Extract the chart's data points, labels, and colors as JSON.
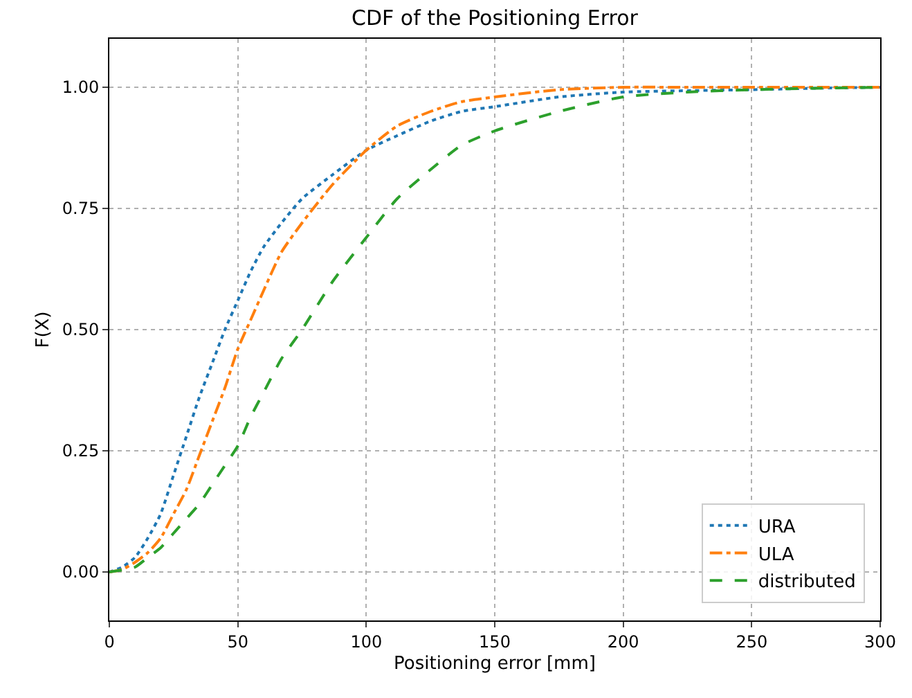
{
  "chart_data": {
    "type": "line",
    "title": "CDF of the Positioning Error",
    "xlabel": "Positioning error [mm]",
    "ylabel": "F(X)",
    "x": [
      0,
      5,
      10,
      15,
      20,
      25,
      30,
      35,
      40,
      45,
      50,
      55,
      60,
      67,
      75,
      87,
      100,
      112,
      125,
      137,
      150,
      175,
      200,
      225,
      250,
      275,
      300
    ],
    "series": [
      {
        "name": "URA",
        "color": "#1f77b4",
        "line_style": "dotted",
        "values": [
          0,
          0.01,
          0.03,
          0.07,
          0.12,
          0.2,
          0.28,
          0.36,
          0.43,
          0.5,
          0.56,
          0.62,
          0.67,
          0.72,
          0.77,
          0.82,
          0.87,
          0.9,
          0.93,
          0.95,
          0.96,
          0.98,
          0.99,
          0.993,
          0.995,
          0.998,
          1.0
        ]
      },
      {
        "name": "ULA",
        "color": "#ff7f0e",
        "line_style": "dashdot",
        "values": [
          0,
          0.005,
          0.02,
          0.04,
          0.07,
          0.12,
          0.17,
          0.24,
          0.31,
          0.38,
          0.46,
          0.52,
          0.58,
          0.66,
          0.72,
          0.8,
          0.87,
          0.92,
          0.95,
          0.97,
          0.98,
          0.995,
          1.0,
          1.0,
          1.0,
          1.0,
          1.0
        ]
      },
      {
        "name": "distributed",
        "color": "#2ca02c",
        "line_style": "dashed",
        "values": [
          0,
          0.004,
          0.01,
          0.03,
          0.05,
          0.08,
          0.11,
          0.14,
          0.18,
          0.22,
          0.26,
          0.32,
          0.37,
          0.44,
          0.5,
          0.6,
          0.69,
          0.77,
          0.83,
          0.88,
          0.91,
          0.95,
          0.98,
          0.99,
          0.995,
          0.998,
          1.0
        ]
      }
    ],
    "xlim": [
      0,
      300
    ],
    "xticks": [
      0,
      50,
      100,
      150,
      200,
      250,
      300
    ],
    "ylim": [
      -0.1,
      1.1
    ],
    "yticks": [
      {
        "value": 0,
        "label": "0.00"
      },
      {
        "value": 0.25,
        "label": "0.25"
      },
      {
        "value": 0.5,
        "label": "0.50"
      },
      {
        "value": 0.75,
        "label": "0.75"
      },
      {
        "value": 1,
        "label": "1.00"
      }
    ],
    "grid": true,
    "legend": "bottom right",
    "marker": "none"
  }
}
